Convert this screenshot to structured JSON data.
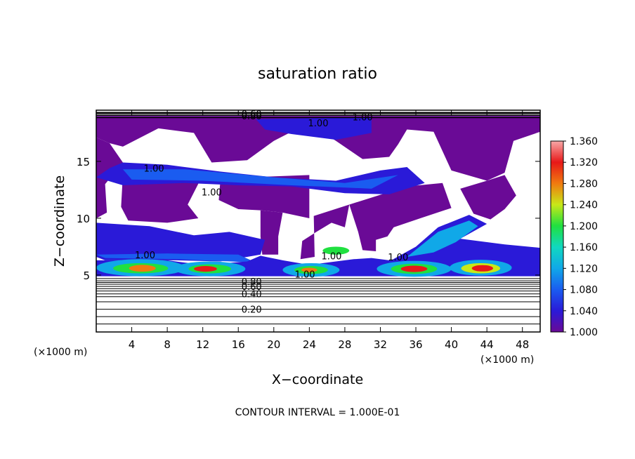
{
  "chart_data": {
    "type": "heatmap",
    "title": "saturation ratio",
    "xlabel": "X−coordinate",
    "ylabel": "Z−coordinate",
    "x_unit_left": "(×1000 m)",
    "x_unit_right": "(×1000 m)",
    "xlim": [
      0,
      50
    ],
    "ylim": [
      0,
      19.5
    ],
    "x_ticks": [
      "4",
      "8",
      "12",
      "16",
      "20",
      "24",
      "28",
      "32",
      "36",
      "40",
      "44",
      "48"
    ],
    "y_ticks": [
      "5",
      "10",
      "15"
    ],
    "x_tick_values": [
      4,
      8,
      12,
      16,
      20,
      24,
      28,
      32,
      36,
      40,
      44,
      48
    ],
    "y_tick_values": [
      5,
      10,
      15
    ],
    "colorbar_labels": [
      "1.000",
      "1.040",
      "1.080",
      "1.120",
      "1.160",
      "1.200",
      "1.240",
      "1.280",
      "1.320",
      "1.360"
    ],
    "colorbar_range": [
      1.0,
      1.36
    ],
    "contour_labels": [
      {
        "text": "0.20",
        "x": 17.5,
        "z": 2.0
      },
      {
        "text": "0.40",
        "x": 17.5,
        "z": 3.35
      },
      {
        "text": "0.60",
        "x": 17.5,
        "z": 4.0
      },
      {
        "text": "0.80",
        "x": 17.5,
        "z": 4.45
      },
      {
        "text": "1.00",
        "x": 5.5,
        "z": 6.8
      },
      {
        "text": "1.00",
        "x": 23.5,
        "z": 5.1
      },
      {
        "text": "1.00",
        "x": 26.5,
        "z": 6.7
      },
      {
        "text": "1.00",
        "x": 34.0,
        "z": 6.6
      },
      {
        "text": "1.00",
        "x": 13.0,
        "z": 12.3
      },
      {
        "text": "1.00",
        "x": 6.5,
        "z": 14.4
      },
      {
        "text": "1.00",
        "x": 25.0,
        "z": 18.4
      },
      {
        "text": "1.00",
        "x": 30.0,
        "z": 18.9
      },
      {
        "text": "0.80",
        "x": 17.5,
        "z": 19.0
      },
      {
        "text": "0.60",
        "x": 17.5,
        "z": 19.2
      }
    ],
    "subsaturated_contour_levels": [
      0.1,
      0.2,
      0.3,
      0.4,
      0.5,
      0.6,
      0.7,
      0.8,
      0.9
    ],
    "colormap": [
      "#6a0a96",
      "#2a1ad8",
      "#1a5cf0",
      "#10a8e8",
      "#10d8c0",
      "#20e040",
      "#c8e818",
      "#f07a10",
      "#e81818",
      "#f8a8a8"
    ],
    "contour_interval_text": "CONTOUR INTERVAL = 1.000E-01"
  }
}
